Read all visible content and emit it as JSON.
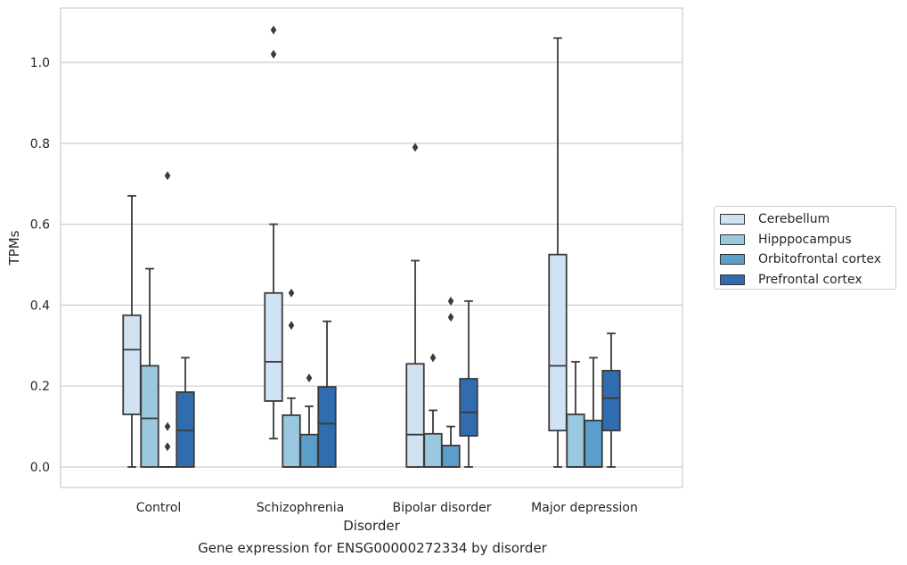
{
  "chart_data": {
    "type": "boxplot",
    "title": "Gene expression for ENSG00000272334 by disorder",
    "xlabel": "Disorder",
    "ylabel": "TPMs",
    "ylim": [
      -0.05,
      1.14
    ],
    "yticks": [
      0.0,
      0.2,
      0.4,
      0.6,
      0.8,
      1.0
    ],
    "ytick_labels": [
      "0.0",
      "0.2",
      "0.4",
      "0.6",
      "0.8",
      "1.0"
    ],
    "categories": [
      "Control",
      "Schizophrenia",
      "Bipolar disorder",
      "Major depression"
    ],
    "grid": "horizontal",
    "legend_position": "right",
    "series": [
      {
        "name": "Cerebellum",
        "color": "#d1e2f2",
        "boxes": [
          {
            "whislo": 0.0,
            "q1": 0.13,
            "med": 0.29,
            "q3": 0.375,
            "whishi": 0.67,
            "fliers": []
          },
          {
            "whislo": 0.07,
            "q1": 0.163,
            "med": 0.26,
            "q3": 0.43,
            "whishi": 0.6,
            "fliers": [
              1.02,
              1.08
            ]
          },
          {
            "whislo": 0.0,
            "q1": 0.0,
            "med": 0.08,
            "q3": 0.255,
            "whishi": 0.51,
            "fliers": [
              0.79
            ]
          },
          {
            "whislo": 0.0,
            "q1": 0.09,
            "med": 0.25,
            "q3": 0.525,
            "whishi": 1.06,
            "fliers": []
          }
        ]
      },
      {
        "name": "Hipppocampus",
        "color": "#9ac8e0",
        "boxes": [
          {
            "whislo": 0.0,
            "q1": 0.0,
            "med": 0.12,
            "q3": 0.25,
            "whishi": 0.49,
            "fliers": []
          },
          {
            "whislo": 0.0,
            "q1": 0.0,
            "med": 0.0,
            "q3": 0.128,
            "whishi": 0.17,
            "fliers": [
              0.35,
              0.43
            ]
          },
          {
            "whislo": 0.0,
            "q1": 0.0,
            "med": 0.0,
            "q3": 0.082,
            "whishi": 0.14,
            "fliers": [
              0.27
            ]
          },
          {
            "whislo": 0.0,
            "q1": 0.0,
            "med": 0.0,
            "q3": 0.13,
            "whishi": 0.26,
            "fliers": []
          }
        ]
      },
      {
        "name": "Orbitofrontal cortex",
        "color": "#5a9ec9",
        "boxes": [
          {
            "whislo": 0.0,
            "q1": 0.0,
            "med": 0.0,
            "q3": 0.0,
            "whishi": 0.0,
            "fliers": [
              0.05,
              0.1,
              0.72
            ]
          },
          {
            "whislo": 0.0,
            "q1": 0.0,
            "med": 0.0,
            "q3": 0.08,
            "whishi": 0.15,
            "fliers": [
              0.22
            ]
          },
          {
            "whislo": 0.0,
            "q1": 0.0,
            "med": 0.0,
            "q3": 0.053,
            "whishi": 0.1,
            "fliers": [
              0.37,
              0.41
            ]
          },
          {
            "whislo": 0.0,
            "q1": 0.0,
            "med": 0.0,
            "q3": 0.115,
            "whishi": 0.27,
            "fliers": []
          }
        ]
      },
      {
        "name": "Prefrontal cortex",
        "color": "#2f6db0",
        "boxes": [
          {
            "whislo": 0.0,
            "q1": 0.0,
            "med": 0.09,
            "q3": 0.185,
            "whishi": 0.27,
            "fliers": []
          },
          {
            "whislo": 0.0,
            "q1": 0.0,
            "med": 0.107,
            "q3": 0.198,
            "whishi": 0.36,
            "fliers": []
          },
          {
            "whislo": 0.0,
            "q1": 0.077,
            "med": 0.135,
            "q3": 0.218,
            "whishi": 0.41,
            "fliers": []
          },
          {
            "whislo": 0.0,
            "q1": 0.09,
            "med": 0.17,
            "q3": 0.238,
            "whishi": 0.33,
            "fliers": []
          }
        ]
      }
    ]
  }
}
